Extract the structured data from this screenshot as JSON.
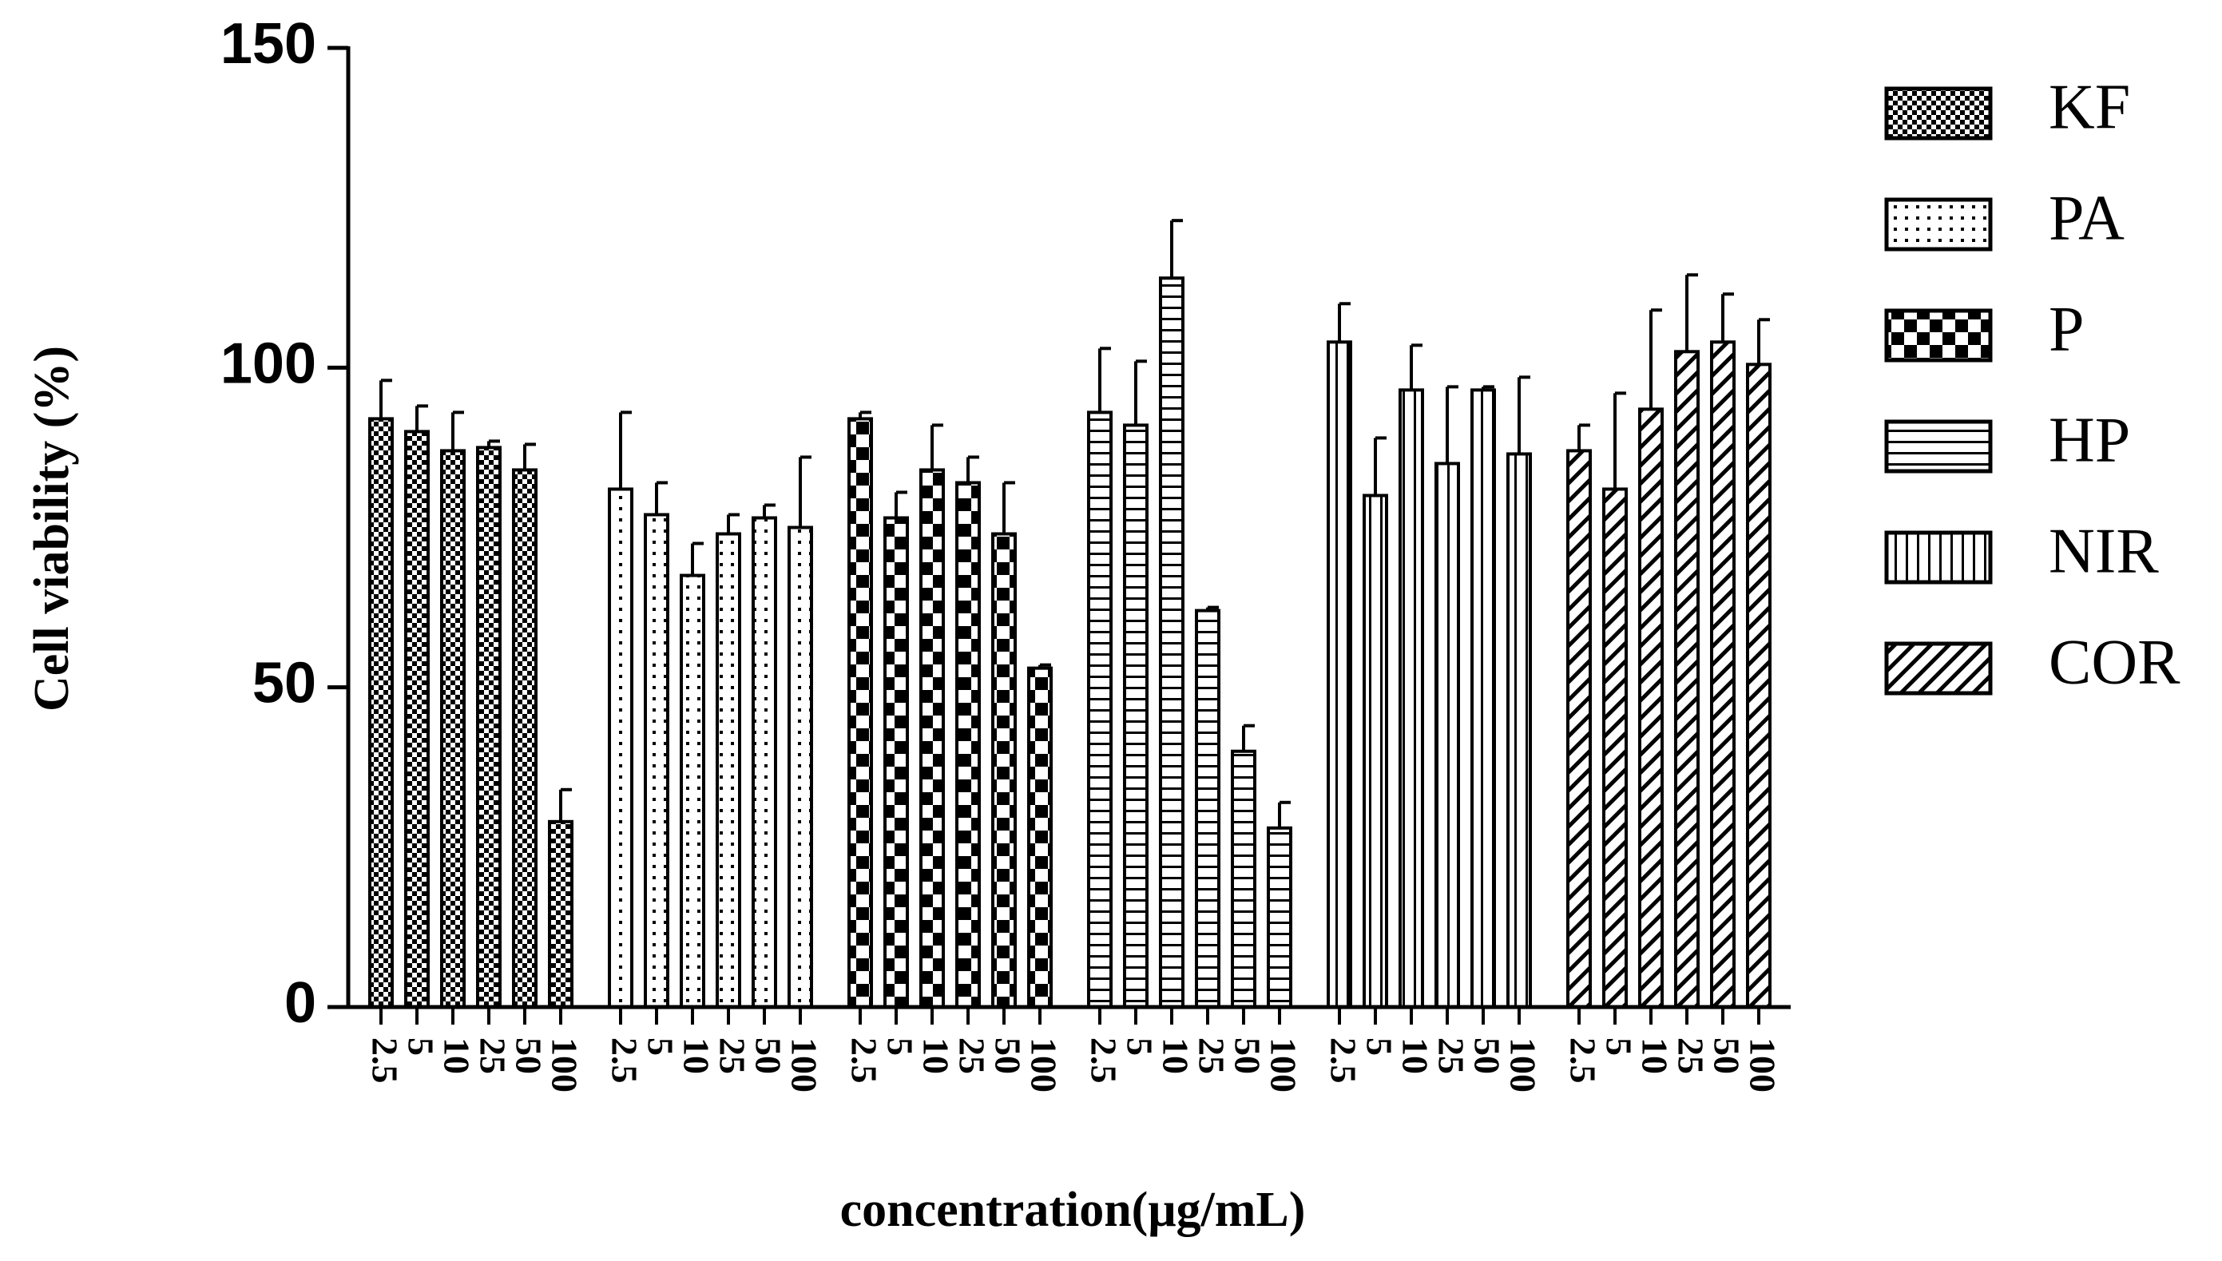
{
  "chart_data": {
    "type": "bar",
    "y_label": "Cell viability (%)",
    "x_label": "concentration(μg/mL)",
    "categories": [
      "2.5",
      "5",
      "10",
      "25",
      "50",
      "100"
    ],
    "series": [
      {
        "name": "KF",
        "color": "#000000",
        "pattern": "small-checker",
        "values": [
          92,
          90,
          87,
          87.5,
          84,
          29
        ],
        "errors": [
          6,
          4,
          6,
          1,
          4,
          5
        ]
      },
      {
        "name": "PA",
        "color": "#000000",
        "pattern": "dots",
        "values": [
          81,
          77,
          67.5,
          74,
          76.5,
          75
        ],
        "errors": [
          12,
          5,
          5,
          3,
          2,
          11
        ]
      },
      {
        "name": "P",
        "color": "#000000",
        "pattern": "large-checker",
        "values": [
          92,
          76.5,
          84,
          82,
          74,
          53
        ],
        "errors": [
          1,
          4,
          7,
          4,
          8,
          0.5
        ]
      },
      {
        "name": "HP",
        "color": "#000000",
        "pattern": "horizontal",
        "values": [
          93,
          91,
          114,
          62,
          40,
          28
        ],
        "errors": [
          10,
          10,
          9,
          0.5,
          4,
          4
        ]
      },
      {
        "name": "NIR",
        "color": "#000000",
        "pattern": "vertical",
        "values": [
          104,
          80,
          96.5,
          85,
          96.5,
          86.5
        ],
        "errors": [
          6,
          9,
          7,
          12,
          0.5,
          12
        ]
      },
      {
        "name": "COR",
        "color": "#000000",
        "pattern": "diagonal",
        "values": [
          87,
          81,
          93.5,
          102.5,
          104,
          100.5
        ],
        "errors": [
          4,
          15,
          15.5,
          12,
          7.5,
          7
        ]
      }
    ],
    "ylim": [
      0,
      150
    ],
    "yticks": [
      0,
      50,
      100,
      150
    ],
    "legend": "right"
  }
}
